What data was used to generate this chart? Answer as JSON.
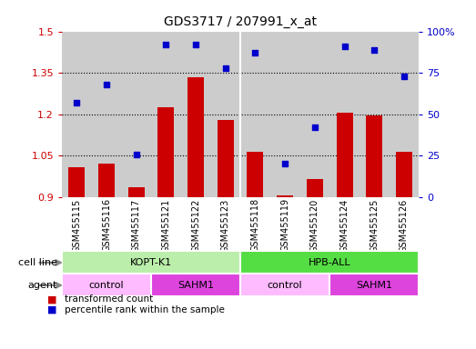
{
  "title": "GDS3717 / 207991_x_at",
  "samples": [
    "GSM455115",
    "GSM455116",
    "GSM455117",
    "GSM455121",
    "GSM455122",
    "GSM455123",
    "GSM455118",
    "GSM455119",
    "GSM455120",
    "GSM455124",
    "GSM455125",
    "GSM455126"
  ],
  "transformed_count": [
    1.01,
    1.02,
    0.935,
    1.225,
    1.335,
    1.18,
    1.065,
    0.905,
    0.965,
    1.205,
    1.195,
    1.065
  ],
  "percentile_rank": [
    57,
    68,
    26,
    92,
    92,
    78,
    87,
    20,
    42,
    91,
    89,
    73
  ],
  "bar_color": "#cc0000",
  "dot_color": "#0000cc",
  "ylim_left": [
    0.9,
    1.5
  ],
  "ylim_right": [
    0,
    100
  ],
  "yticks_left": [
    0.9,
    1.05,
    1.2,
    1.35,
    1.5
  ],
  "ytick_labels_left": [
    "0.9",
    "1.05",
    "1.2",
    "1.35",
    "1.5"
  ],
  "yticks_right": [
    0,
    25,
    50,
    75,
    100
  ],
  "ytick_labels_right": [
    "0",
    "25",
    "50",
    "75",
    "100%"
  ],
  "hlines": [
    1.05,
    1.2,
    1.35
  ],
  "cell_line_groups": [
    {
      "label": "KOPT-K1",
      "start": 0,
      "end": 6,
      "color": "#bbeeaa"
    },
    {
      "label": "HPB-ALL",
      "start": 6,
      "end": 12,
      "color": "#55dd44"
    }
  ],
  "agent_groups": [
    {
      "label": "control",
      "start": 0,
      "end": 3,
      "color": "#ffbbff"
    },
    {
      "label": "SAHM1",
      "start": 3,
      "end": 6,
      "color": "#dd44dd"
    },
    {
      "label": "control",
      "start": 6,
      "end": 9,
      "color": "#ffbbff"
    },
    {
      "label": "SAHM1",
      "start": 9,
      "end": 12,
      "color": "#dd44dd"
    }
  ],
  "legend_bar_label": "transformed count",
  "legend_dot_label": "percentile rank within the sample",
  "cell_line_row_label": "cell line",
  "agent_row_label": "agent",
  "background_color": "#ffffff",
  "plot_bg_color": "#cccccc",
  "bar_baseline": 0.9
}
